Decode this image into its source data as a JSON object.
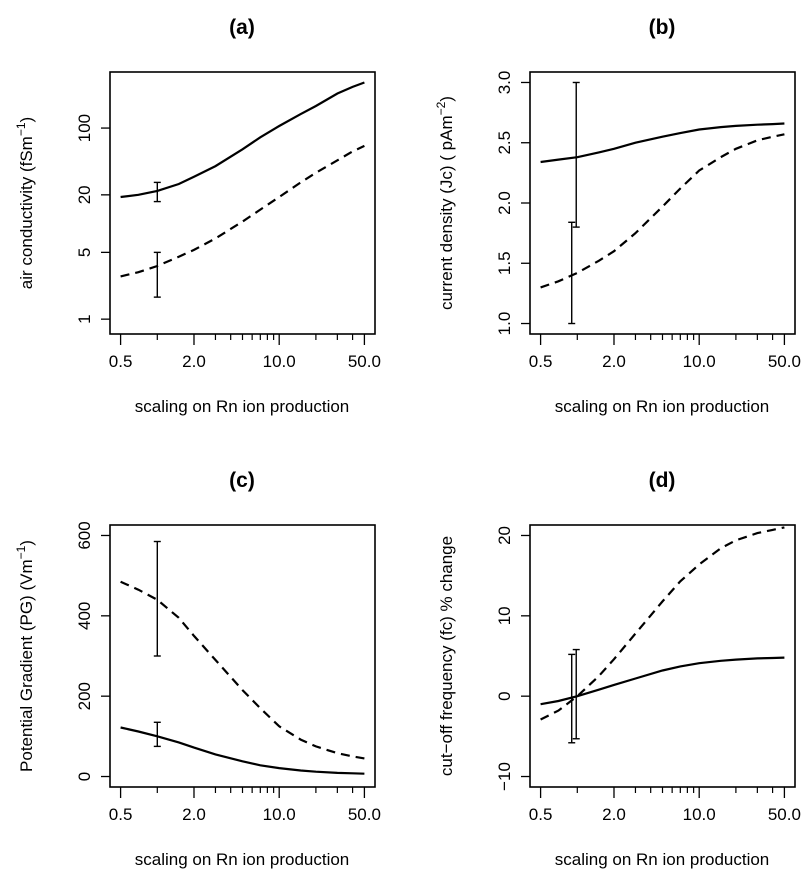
{
  "chart_data": [
    {
      "type": "line",
      "title": "(a)",
      "xlabel": "scaling on Rn ion production",
      "ylabel": "air conductivity (fSm⁻¹)",
      "xscale": "log",
      "yscale": "log",
      "xlim": [
        0.5,
        50
      ],
      "ylim": [
        0.9,
        300
      ],
      "xticks": [
        0.5,
        2,
        10,
        50
      ],
      "xtick_labels": [
        "0.5",
        "2.0",
        "10.0",
        "50.0"
      ],
      "yticks": [
        1,
        5,
        20,
        100
      ],
      "ytick_labels": [
        "1",
        "5",
        "20",
        "100"
      ],
      "series": [
        {
          "style": "solid",
          "x": [
            0.5,
            0.7,
            1,
            1.5,
            2,
            3,
            5,
            7,
            10,
            15,
            20,
            30,
            40,
            50
          ],
          "y": [
            19,
            20,
            22,
            26,
            31,
            40,
            60,
            80,
            105,
            140,
            170,
            230,
            270,
            300
          ]
        },
        {
          "style": "dashed",
          "x": [
            0.5,
            0.7,
            1,
            1.5,
            2,
            3,
            5,
            7,
            10,
            15,
            20,
            30,
            40,
            50
          ],
          "y": [
            2.8,
            3.1,
            3.6,
            4.5,
            5.3,
            7,
            10.5,
            14,
            19,
            27,
            34,
            46,
            57,
            65
          ]
        }
      ],
      "error_bars": [
        {
          "x": 1,
          "low": 17,
          "high": 27
        },
        {
          "x": 1,
          "low": 1.7,
          "high": 5
        }
      ]
    },
    {
      "type": "line",
      "title": "(b)",
      "xlabel": "scaling on Rn ion production",
      "ylabel": "current density (Jc) ( pAm⁻²)",
      "xscale": "log",
      "yscale": "linear",
      "xlim": [
        0.5,
        50
      ],
      "ylim": [
        1.0,
        3.0
      ],
      "xticks": [
        0.5,
        2,
        10,
        50
      ],
      "xtick_labels": [
        "0.5",
        "2.0",
        "10.0",
        "50.0"
      ],
      "yticks": [
        1.0,
        1.5,
        2.0,
        2.5,
        3.0
      ],
      "ytick_labels": [
        "1.0",
        "1.5",
        "2.0",
        "2.5",
        "3.0"
      ],
      "series": [
        {
          "style": "solid",
          "x": [
            0.5,
            0.7,
            1,
            1.5,
            2,
            3,
            5,
            7,
            10,
            15,
            20,
            30,
            40,
            50
          ],
          "y": [
            2.34,
            2.36,
            2.38,
            2.42,
            2.45,
            2.5,
            2.55,
            2.58,
            2.61,
            2.63,
            2.64,
            2.65,
            2.655,
            2.66
          ]
        },
        {
          "style": "dashed",
          "x": [
            0.5,
            0.7,
            1,
            1.5,
            2,
            3,
            5,
            7,
            10,
            15,
            20,
            30,
            40,
            50
          ],
          "y": [
            1.3,
            1.35,
            1.42,
            1.52,
            1.6,
            1.75,
            1.97,
            2.12,
            2.27,
            2.38,
            2.45,
            2.52,
            2.55,
            2.57
          ]
        }
      ],
      "error_bars": [
        {
          "x": 0.98,
          "low": 1.8,
          "high": 3.0
        },
        {
          "x": 0.9,
          "low": 1.0,
          "high": 1.84
        }
      ]
    },
    {
      "type": "line",
      "title": "(c)",
      "xlabel": "scaling on Rn ion production",
      "ylabel": "Potential Gradient (PG) (Vm⁻¹)",
      "xscale": "log",
      "yscale": "linear",
      "xlim": [
        0.5,
        50
      ],
      "ylim": [
        0,
        600
      ],
      "xticks": [
        0.5,
        2,
        10,
        50
      ],
      "xtick_labels": [
        "0.5",
        "2.0",
        "10.0",
        "50.0"
      ],
      "yticks": [
        0,
        200,
        400,
        600
      ],
      "ytick_labels": [
        "0",
        "200",
        "400",
        "600"
      ],
      "series": [
        {
          "style": "solid",
          "x": [
            0.5,
            0.7,
            1,
            1.5,
            2,
            3,
            5,
            7,
            10,
            15,
            20,
            30,
            40,
            50
          ],
          "y": [
            122,
            112,
            100,
            85,
            72,
            55,
            38,
            28,
            21,
            15,
            12,
            9,
            8,
            7
          ]
        },
        {
          "style": "dashed",
          "x": [
            0.5,
            0.7,
            1,
            1.5,
            2,
            3,
            5,
            7,
            10,
            15,
            20,
            30,
            40,
            50
          ],
          "y": [
            485,
            465,
            440,
            395,
            350,
            290,
            215,
            170,
            125,
            92,
            75,
            58,
            50,
            45
          ]
        }
      ],
      "error_bars": [
        {
          "x": 1,
          "low": 75,
          "high": 135
        },
        {
          "x": 1,
          "low": 300,
          "high": 585
        }
      ]
    },
    {
      "type": "line",
      "title": "(d)",
      "xlabel": "scaling on Rn ion production",
      "ylabel": "cut−off frequency (fc) % change",
      "xscale": "log",
      "yscale": "linear",
      "xlim": [
        0.5,
        50
      ],
      "ylim": [
        -10,
        20
      ],
      "xticks": [
        0.5,
        2,
        10,
        50
      ],
      "xtick_labels": [
        "0.5",
        "2.0",
        "10.0",
        "50.0"
      ],
      "yticks": [
        -10,
        0,
        10,
        20
      ],
      "ytick_labels": [
        "−10",
        "0",
        "10",
        "20"
      ],
      "series": [
        {
          "style": "solid",
          "x": [
            0.5,
            0.7,
            1,
            1.5,
            2,
            3,
            5,
            7,
            10,
            15,
            20,
            30,
            40,
            50
          ],
          "y": [
            -1.0,
            -0.6,
            0,
            0.8,
            1.4,
            2.2,
            3.2,
            3.7,
            4.1,
            4.4,
            4.55,
            4.7,
            4.75,
            4.8
          ]
        },
        {
          "style": "dashed",
          "x": [
            0.5,
            0.7,
            1,
            1.5,
            2,
            3,
            5,
            7,
            10,
            15,
            20,
            30,
            40,
            50
          ],
          "y": [
            -2.9,
            -1.8,
            0,
            2.5,
            4.6,
            7.8,
            11.8,
            14.3,
            16.4,
            18.4,
            19.4,
            20.3,
            20.7,
            21.0
          ]
        }
      ],
      "error_bars": [
        {
          "x": 0.9,
          "low": -5.8,
          "high": 5.2
        },
        {
          "x": 0.98,
          "low": -5.3,
          "high": 5.8
        }
      ]
    }
  ]
}
